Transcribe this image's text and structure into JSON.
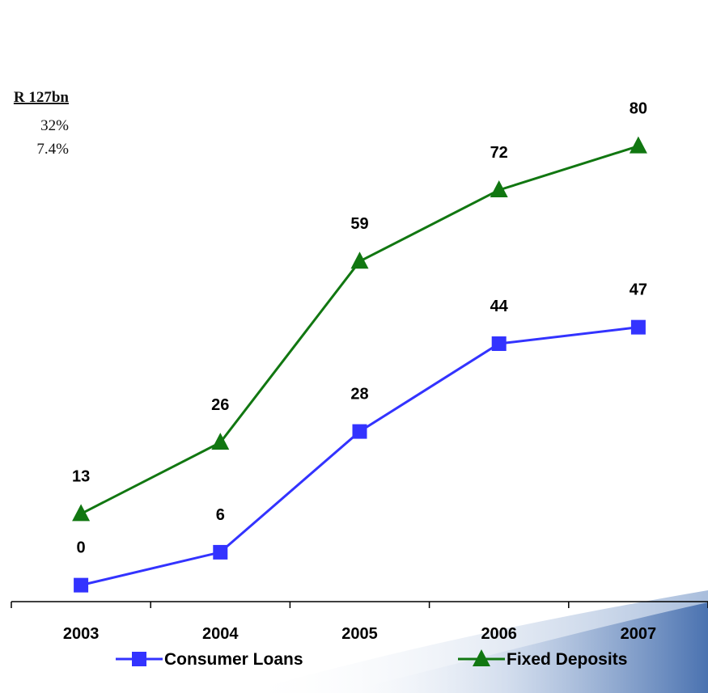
{
  "side_panel": {
    "heading": "R 127bn",
    "line1": "32%",
    "line2": "7.4%"
  },
  "chart_data": {
    "type": "line",
    "categories": [
      "2003",
      "2004",
      "2005",
      "2006",
      "2007"
    ],
    "series": [
      {
        "name": "Consumer Loans",
        "values": [
          0,
          6,
          28,
          44,
          47
        ],
        "color": "#3333ff",
        "marker": "square"
      },
      {
        "name": "Fixed Deposits",
        "values": [
          13,
          26,
          59,
          72,
          80
        ],
        "color": "#117711",
        "marker": "triangle"
      }
    ],
    "title": "",
    "xlabel": "",
    "ylabel": "",
    "ylim": [
      -3,
      105
    ],
    "grid": false,
    "legend": "bottom"
  },
  "colors": {
    "axis": "#000000",
    "swoosh": "#5a7fb8"
  }
}
